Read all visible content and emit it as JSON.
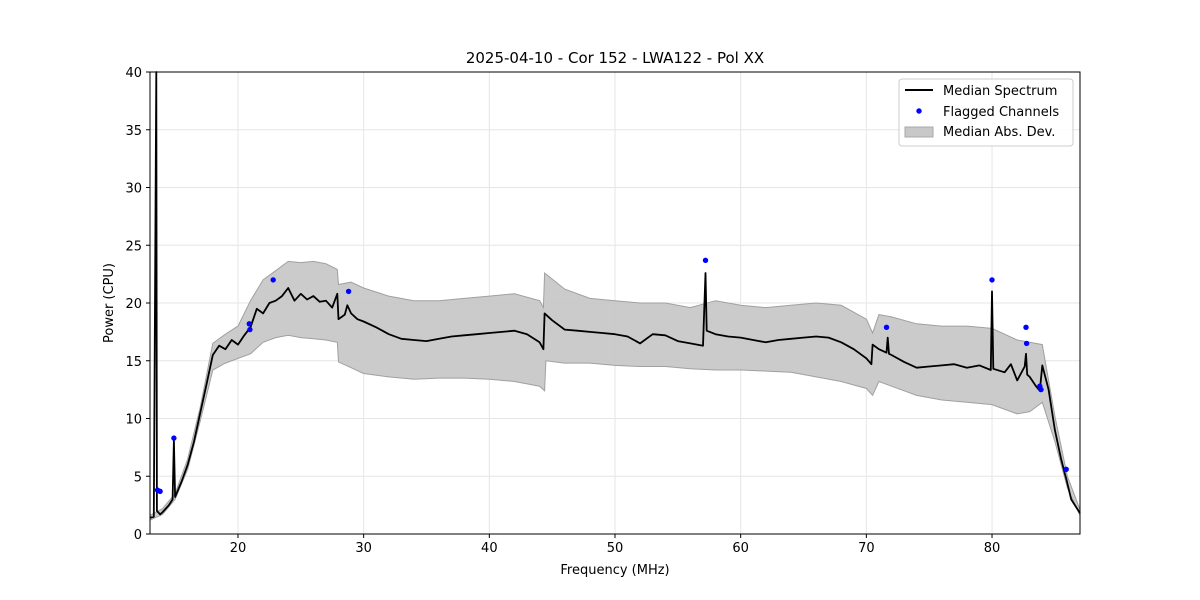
{
  "chart_data": {
    "type": "line",
    "title": "2025-04-10 - Cor 152 - LWA122 - Pol XX",
    "xlabel": "Frequency (MHz)",
    "ylabel": "Power (CPU)",
    "xlim": [
      13,
      87
    ],
    "ylim": [
      0,
      40
    ],
    "xticks": [
      20,
      30,
      40,
      50,
      60,
      70,
      80
    ],
    "yticks": [
      0,
      5,
      10,
      15,
      20,
      25,
      30,
      35,
      40
    ],
    "grid": true,
    "legend_position": "top-right",
    "series": [
      {
        "name": "Median Spectrum",
        "kind": "line",
        "color": "#000000",
        "points": [
          [
            13.0,
            1.4
          ],
          [
            13.3,
            1.5
          ],
          [
            13.5,
            40
          ],
          [
            13.55,
            2.0
          ],
          [
            13.8,
            1.7
          ],
          [
            14.0,
            1.9
          ],
          [
            14.5,
            2.5
          ],
          [
            14.8,
            3.0
          ],
          [
            14.9,
            8.1
          ],
          [
            15.0,
            3.2
          ],
          [
            15.5,
            4.5
          ],
          [
            16.0,
            6.0
          ],
          [
            16.5,
            8.0
          ],
          [
            17.0,
            10.5
          ],
          [
            17.5,
            13.0
          ],
          [
            18.0,
            15.5
          ],
          [
            18.5,
            16.3
          ],
          [
            19.0,
            16.0
          ],
          [
            19.5,
            16.8
          ],
          [
            20.0,
            16.4
          ],
          [
            20.5,
            17.2
          ],
          [
            21.0,
            17.9
          ],
          [
            21.5,
            19.5
          ],
          [
            22.0,
            19.1
          ],
          [
            22.5,
            20.0
          ],
          [
            23.0,
            20.2
          ],
          [
            23.5,
            20.6
          ],
          [
            24.0,
            21.3
          ],
          [
            24.5,
            20.2
          ],
          [
            25.0,
            20.8
          ],
          [
            25.5,
            20.3
          ],
          [
            26.0,
            20.6
          ],
          [
            26.5,
            20.1
          ],
          [
            27.0,
            20.2
          ],
          [
            27.5,
            19.6
          ],
          [
            27.9,
            20.8
          ],
          [
            28.0,
            18.6
          ],
          [
            28.5,
            19.0
          ],
          [
            28.7,
            19.8
          ],
          [
            29.0,
            19.1
          ],
          [
            29.5,
            18.6
          ],
          [
            30.0,
            18.4
          ],
          [
            31.0,
            17.9
          ],
          [
            32.0,
            17.3
          ],
          [
            33.0,
            16.9
          ],
          [
            34.0,
            16.8
          ],
          [
            35.0,
            16.7
          ],
          [
            36.0,
            16.9
          ],
          [
            37.0,
            17.1
          ],
          [
            38.0,
            17.2
          ],
          [
            39.0,
            17.3
          ],
          [
            40.0,
            17.4
          ],
          [
            41.0,
            17.5
          ],
          [
            42.0,
            17.6
          ],
          [
            43.0,
            17.3
          ],
          [
            44.0,
            16.6
          ],
          [
            44.3,
            16.0
          ],
          [
            44.4,
            19.1
          ],
          [
            45.0,
            18.5
          ],
          [
            46.0,
            17.7
          ],
          [
            47.0,
            17.6
          ],
          [
            48.0,
            17.5
          ],
          [
            49.0,
            17.4
          ],
          [
            50.0,
            17.3
          ],
          [
            51.0,
            17.1
          ],
          [
            52.0,
            16.5
          ],
          [
            53.0,
            17.3
          ],
          [
            54.0,
            17.2
          ],
          [
            55.0,
            16.7
          ],
          [
            56.0,
            16.5
          ],
          [
            57.0,
            16.3
          ],
          [
            57.2,
            22.6
          ],
          [
            57.3,
            17.6
          ],
          [
            58.0,
            17.3
          ],
          [
            59.0,
            17.1
          ],
          [
            60.0,
            17.0
          ],
          [
            61.0,
            16.8
          ],
          [
            62.0,
            16.6
          ],
          [
            63.0,
            16.8
          ],
          [
            64.0,
            16.9
          ],
          [
            65.0,
            17.0
          ],
          [
            66.0,
            17.1
          ],
          [
            67.0,
            17.0
          ],
          [
            68.0,
            16.6
          ],
          [
            69.0,
            16.0
          ],
          [
            70.0,
            15.2
          ],
          [
            70.4,
            14.7
          ],
          [
            70.5,
            16.4
          ],
          [
            71.0,
            16.0
          ],
          [
            71.6,
            15.7
          ],
          [
            71.7,
            17.0
          ],
          [
            71.8,
            15.6
          ],
          [
            72.0,
            15.5
          ],
          [
            73.0,
            14.9
          ],
          [
            74.0,
            14.4
          ],
          [
            75.0,
            14.5
          ],
          [
            76.0,
            14.6
          ],
          [
            77.0,
            14.7
          ],
          [
            78.0,
            14.4
          ],
          [
            79.0,
            14.6
          ],
          [
            79.9,
            14.2
          ],
          [
            80.0,
            21.0
          ],
          [
            80.1,
            14.3
          ],
          [
            81.0,
            14.0
          ],
          [
            81.5,
            14.7
          ],
          [
            82.0,
            13.3
          ],
          [
            82.6,
            14.5
          ],
          [
            82.7,
            15.6
          ],
          [
            82.8,
            13.8
          ],
          [
            83.0,
            13.6
          ],
          [
            83.5,
            12.8
          ],
          [
            83.8,
            12.4
          ],
          [
            84.0,
            14.6
          ],
          [
            84.5,
            12.5
          ],
          [
            85.0,
            9.0
          ],
          [
            85.5,
            6.5
          ],
          [
            85.8,
            5.2
          ],
          [
            85.9,
            4.8
          ],
          [
            86.3,
            3.0
          ],
          [
            87.0,
            1.8
          ]
        ]
      },
      {
        "name": "Flagged Channels",
        "kind": "scatter",
        "color": "#0000ff",
        "points": [
          [
            13.6,
            3.8
          ],
          [
            13.8,
            3.7
          ],
          [
            14.9,
            8.3
          ],
          [
            20.9,
            18.2
          ],
          [
            20.95,
            17.7
          ],
          [
            22.8,
            22.0
          ],
          [
            28.8,
            21.0
          ],
          [
            57.2,
            23.7
          ],
          [
            71.6,
            17.9
          ],
          [
            80.0,
            22.0
          ],
          [
            82.7,
            17.9
          ],
          [
            82.75,
            16.5
          ],
          [
            83.8,
            12.8
          ],
          [
            83.9,
            12.5
          ],
          [
            85.9,
            5.6
          ]
        ]
      },
      {
        "name": "Median Abs. Dev.",
        "kind": "band",
        "color": "#c8c8c8",
        "lower": [
          [
            13.0,
            1.2
          ],
          [
            14.0,
            1.7
          ],
          [
            15.0,
            3.0
          ],
          [
            16.0,
            5.6
          ],
          [
            17.0,
            9.8
          ],
          [
            18.0,
            14.2
          ],
          [
            19.0,
            14.8
          ],
          [
            20.0,
            15.2
          ],
          [
            21.0,
            15.6
          ],
          [
            22.0,
            16.6
          ],
          [
            23.0,
            17.0
          ],
          [
            24.0,
            17.2
          ],
          [
            25.0,
            17.0
          ],
          [
            26.0,
            16.9
          ],
          [
            27.0,
            16.8
          ],
          [
            27.9,
            16.6
          ],
          [
            28.0,
            14.9
          ],
          [
            29.0,
            14.4
          ],
          [
            30.0,
            13.9
          ],
          [
            32.0,
            13.6
          ],
          [
            34.0,
            13.4
          ],
          [
            36.0,
            13.5
          ],
          [
            38.0,
            13.5
          ],
          [
            40.0,
            13.4
          ],
          [
            42.0,
            13.2
          ],
          [
            44.0,
            12.8
          ],
          [
            44.4,
            12.4
          ],
          [
            44.5,
            15.0
          ],
          [
            46.0,
            14.8
          ],
          [
            48.0,
            14.8
          ],
          [
            50.0,
            14.6
          ],
          [
            52.0,
            14.5
          ],
          [
            54.0,
            14.5
          ],
          [
            56.0,
            14.3
          ],
          [
            58.0,
            14.2
          ],
          [
            60.0,
            14.2
          ],
          [
            62.0,
            14.1
          ],
          [
            64.0,
            14.0
          ],
          [
            66.0,
            13.6
          ],
          [
            68.0,
            13.2
          ],
          [
            70.0,
            12.6
          ],
          [
            70.5,
            12.0
          ],
          [
            71.0,
            13.2
          ],
          [
            72.0,
            12.8
          ],
          [
            74.0,
            12.0
          ],
          [
            76.0,
            11.6
          ],
          [
            78.0,
            11.4
          ],
          [
            80.0,
            11.2
          ],
          [
            82.0,
            10.4
          ],
          [
            83.0,
            10.6
          ],
          [
            84.0,
            11.4
          ],
          [
            85.0,
            8.0
          ],
          [
            86.0,
            4.0
          ],
          [
            87.0,
            1.6
          ]
        ],
        "upper": [
          [
            13.0,
            1.6
          ],
          [
            14.0,
            2.2
          ],
          [
            15.0,
            3.5
          ],
          [
            16.0,
            6.5
          ],
          [
            17.0,
            11.0
          ],
          [
            18.0,
            16.5
          ],
          [
            19.0,
            17.3
          ],
          [
            20.0,
            18.0
          ],
          [
            21.0,
            20.2
          ],
          [
            22.0,
            22.0
          ],
          [
            23.0,
            22.8
          ],
          [
            24.0,
            23.6
          ],
          [
            25.0,
            23.5
          ],
          [
            26.0,
            23.6
          ],
          [
            27.0,
            23.4
          ],
          [
            27.9,
            22.9
          ],
          [
            28.0,
            21.6
          ],
          [
            29.0,
            21.8
          ],
          [
            30.0,
            21.3
          ],
          [
            32.0,
            20.6
          ],
          [
            34.0,
            20.2
          ],
          [
            36.0,
            20.2
          ],
          [
            38.0,
            20.4
          ],
          [
            40.0,
            20.6
          ],
          [
            42.0,
            20.8
          ],
          [
            44.0,
            20.2
          ],
          [
            44.3,
            19.6
          ],
          [
            44.4,
            22.6
          ],
          [
            46.0,
            21.2
          ],
          [
            48.0,
            20.4
          ],
          [
            50.0,
            20.2
          ],
          [
            52.0,
            20.0
          ],
          [
            54.0,
            20.0
          ],
          [
            56.0,
            19.6
          ],
          [
            58.0,
            20.2
          ],
          [
            60.0,
            19.8
          ],
          [
            62.0,
            19.6
          ],
          [
            64.0,
            19.8
          ],
          [
            66.0,
            20.0
          ],
          [
            68.0,
            19.8
          ],
          [
            70.0,
            18.6
          ],
          [
            70.5,
            17.4
          ],
          [
            71.0,
            19.0
          ],
          [
            72.0,
            18.8
          ],
          [
            74.0,
            18.2
          ],
          [
            76.0,
            18.0
          ],
          [
            78.0,
            18.0
          ],
          [
            80.0,
            17.8
          ],
          [
            82.0,
            16.8
          ],
          [
            83.0,
            16.6
          ],
          [
            84.0,
            16.4
          ],
          [
            85.0,
            10.2
          ],
          [
            86.0,
            5.0
          ],
          [
            87.0,
            2.1
          ]
        ]
      }
    ]
  }
}
